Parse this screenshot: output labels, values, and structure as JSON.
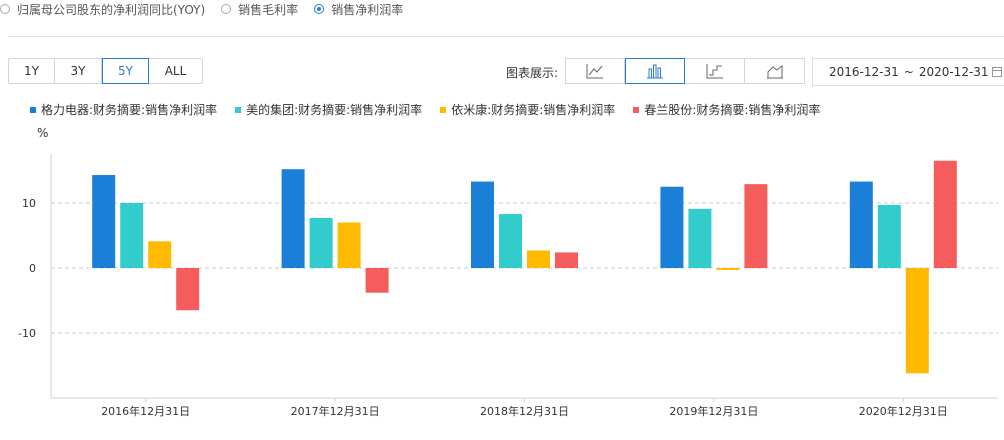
{
  "metric_options": [
    {
      "label": "归属母公司股东的净利润同比(YOY)",
      "checked": false
    },
    {
      "label": "销售毛利率",
      "checked": false
    },
    {
      "label": "销售净利润率",
      "checked": true
    }
  ],
  "range_buttons": [
    {
      "label": "1Y",
      "active": false
    },
    {
      "label": "3Y",
      "active": false
    },
    {
      "label": "5Y",
      "active": true
    },
    {
      "label": "ALL",
      "active": false
    }
  ],
  "chart_type_label": "图表展示:",
  "chart_types": [
    {
      "name": "line-chart-icon",
      "active": false
    },
    {
      "name": "bar-chart-icon",
      "active": true
    },
    {
      "name": "step-chart-icon",
      "active": false
    },
    {
      "name": "area-chart-icon",
      "active": false
    }
  ],
  "date_range": {
    "start": "2016-12-31",
    "sep": "~",
    "end": "2020-12-31"
  },
  "chart_data": {
    "type": "bar",
    "unit_label": "%",
    "categories": [
      "2016年12月31日",
      "2017年12月31日",
      "2018年12月31日",
      "2019年12月31日",
      "2020年12月31日"
    ],
    "ylim": [
      -20,
      17.5
    ],
    "yticks": [
      -10,
      0,
      10
    ],
    "grid": true,
    "legend_position": "top-left",
    "series": [
      {
        "name": "格力电器:财务摘要:销售净利润率",
        "color": "#1a7fd6",
        "values": [
          14.3,
          15.2,
          13.3,
          12.5,
          13.3
        ]
      },
      {
        "name": "美的集团:财务摘要:销售净利润率",
        "color": "#33cccc",
        "values": [
          10.0,
          7.7,
          8.3,
          9.1,
          9.7
        ]
      },
      {
        "name": "依米康:财务摘要:销售净利润率",
        "color": "#ffba00",
        "values": [
          4.1,
          7.0,
          2.7,
          -0.3,
          -16.2
        ]
      },
      {
        "name": "春兰股份:财务摘要:销售净利润率",
        "color": "#f55c5c",
        "values": [
          -6.5,
          -3.8,
          2.4,
          12.9,
          16.5
        ]
      }
    ]
  }
}
